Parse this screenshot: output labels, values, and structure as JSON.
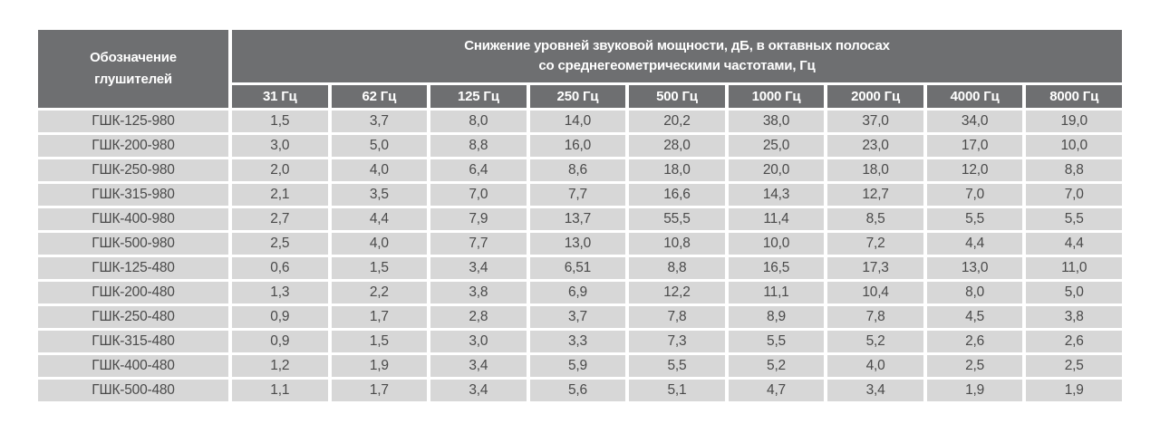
{
  "colors": {
    "header_bg": "#6e6f71",
    "header_text": "#ffffff",
    "row_bg": "#d7d7d7",
    "cell_text": "#4a4a4a"
  },
  "table": {
    "corner_header_line1": "Обозначение",
    "corner_header_line2": "глушителей",
    "main_header_line1": "Снижение уровней звуковой мощности, дБ, в октавных полосах",
    "main_header_line2": "со среднегеометрическими частотами, Гц",
    "freq_headers": [
      "31 Гц",
      "62 Гц",
      "125 Гц",
      "250 Гц",
      "500 Гц",
      "1000 Гц",
      "2000 Гц",
      "4000 Гц",
      "8000 Гц"
    ],
    "rows": [
      {
        "label": "ГШК-125-980",
        "values": [
          "1,5",
          "3,7",
          "8,0",
          "14,0",
          "20,2",
          "38,0",
          "37,0",
          "34,0",
          "19,0"
        ]
      },
      {
        "label": "ГШК-200-980",
        "values": [
          "3,0",
          "5,0",
          "8,8",
          "16,0",
          "28,0",
          "25,0",
          "23,0",
          "17,0",
          "10,0"
        ]
      },
      {
        "label": "ГШК-250-980",
        "values": [
          "2,0",
          "4,0",
          "6,4",
          "8,6",
          "18,0",
          "20,0",
          "18,0",
          "12,0",
          "8,8"
        ]
      },
      {
        "label": "ГШК-315-980",
        "values": [
          "2,1",
          "3,5",
          "7,0",
          "7,7",
          "16,6",
          "14,3",
          "12,7",
          "7,0",
          "7,0"
        ]
      },
      {
        "label": "ГШК-400-980",
        "values": [
          "2,7",
          "4,4",
          "7,9",
          "13,7",
          "55,5",
          "11,4",
          "8,5",
          "5,5",
          "5,5"
        ]
      },
      {
        "label": "ГШК-500-980",
        "values": [
          "2,5",
          "4,0",
          "7,7",
          "13,0",
          "10,8",
          "10,0",
          "7,2",
          "4,4",
          "4,4"
        ]
      },
      {
        "label": "ГШК-125-480",
        "values": [
          "0,6",
          "1,5",
          "3,4",
          "6,51",
          "8,8",
          "16,5",
          "17,3",
          "13,0",
          "11,0"
        ]
      },
      {
        "label": "ГШК-200-480",
        "values": [
          "1,3",
          "2,2",
          "3,8",
          "6,9",
          "12,2",
          "11,1",
          "10,4",
          "8,0",
          "5,0"
        ]
      },
      {
        "label": "ГШК-250-480",
        "values": [
          "0,9",
          "1,7",
          "2,8",
          "3,7",
          "7,8",
          "8,9",
          "7,8",
          "4,5",
          "3,8"
        ]
      },
      {
        "label": "ГШК-315-480",
        "values": [
          "0,9",
          "1,5",
          "3,0",
          "3,3",
          "7,3",
          "5,5",
          "5,2",
          "2,6",
          "2,6"
        ]
      },
      {
        "label": "ГШК-400-480",
        "values": [
          "1,2",
          "1,9",
          "3,4",
          "5,9",
          "5,5",
          "5,2",
          "4,0",
          "2,5",
          "2,5"
        ]
      },
      {
        "label": "ГШК-500-480",
        "values": [
          "1,1",
          "1,7",
          "3,4",
          "5,6",
          "5,1",
          "4,7",
          "3,4",
          "1,9",
          "1,9"
        ]
      }
    ]
  }
}
